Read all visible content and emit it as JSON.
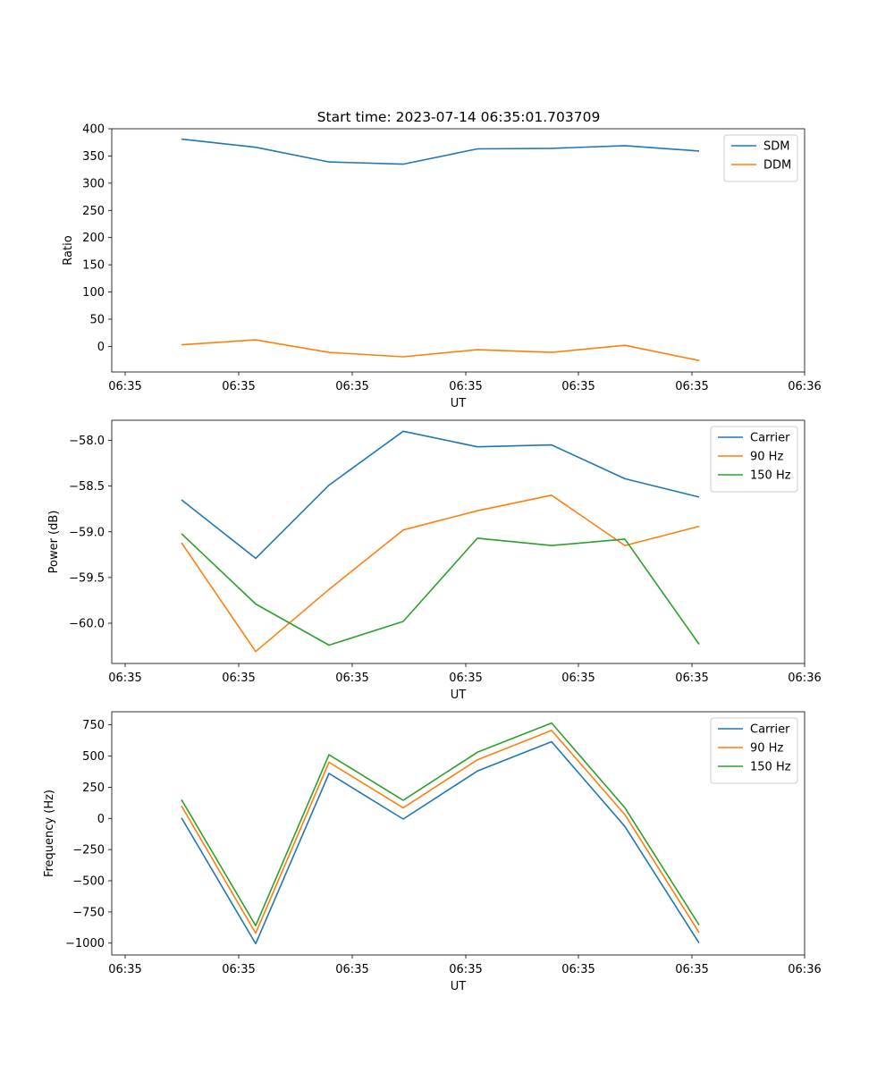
{
  "figure_title": "Start time: 2023-07-14 06:35:01.703709",
  "chart_data": [
    {
      "type": "line",
      "title": "Start time: 2023-07-14 06:35:01.703709",
      "xlabel": "UT",
      "ylabel": "Ratio",
      "xticks": [
        "06:35",
        "06:35",
        "06:35",
        "06:35",
        "06:35",
        "06:35",
        "06:36"
      ],
      "ylim": [
        -47,
        400
      ],
      "yticks": [
        0,
        50,
        100,
        150,
        200,
        250,
        300,
        350,
        400
      ],
      "ytick_labels": [
        "0",
        "50",
        "100",
        "150",
        "200",
        "250",
        "300",
        "350",
        "400"
      ],
      "legend": "top-right",
      "series": [
        {
          "name": "SDM",
          "color": "#1f77b4",
          "values": [
            381,
            366,
            339,
            335,
            363,
            364,
            369,
            359
          ]
        },
        {
          "name": "DDM",
          "color": "#ff7f0e",
          "values": [
            3,
            12,
            -11,
            -19,
            -6,
            -11,
            2,
            -26
          ]
        }
      ]
    },
    {
      "type": "line",
      "xlabel": "UT",
      "ylabel": "Power (dB)",
      "xticks": [
        "06:35",
        "06:35",
        "06:35",
        "06:35",
        "06:35",
        "06:35",
        "06:36"
      ],
      "ylim": [
        -60.44,
        -57.78
      ],
      "yticks": [
        -58.0,
        -58.5,
        -59.0,
        -59.5,
        -60.0
      ],
      "ytick_labels": [
        "−58.0",
        "−58.5",
        "−59.0",
        "−59.5",
        "−60.0"
      ],
      "legend": "top-right",
      "series": [
        {
          "name": "Carrier",
          "color": "#1f77b4",
          "values": [
            -58.65,
            -59.29,
            -58.49,
            -57.9,
            -58.07,
            -58.05,
            -58.42,
            -58.62
          ]
        },
        {
          "name": "90 Hz",
          "color": "#ff7f0e",
          "values": [
            -59.12,
            -60.31,
            -59.63,
            -58.98,
            -58.77,
            -58.6,
            -59.15,
            -58.94
          ]
        },
        {
          "name": "150 Hz",
          "color": "#2ca02c",
          "values": [
            -59.02,
            -59.79,
            -60.24,
            -59.98,
            -59.07,
            -59.15,
            -59.08,
            -60.23
          ]
        }
      ]
    },
    {
      "type": "line",
      "xlabel": "UT",
      "ylabel": "Frequency (Hz)",
      "xticks": [
        "06:35",
        "06:35",
        "06:35",
        "06:35",
        "06:35",
        "06:35",
        "06:36"
      ],
      "ylim": [
        -1095,
        855
      ],
      "yticks": [
        750,
        500,
        250,
        0,
        -250,
        -500,
        -750,
        -1000
      ],
      "ytick_labels": [
        "750",
        "500",
        "250",
        "0",
        "−250",
        "−500",
        "−750",
        "−1000"
      ],
      "legend": "top-right",
      "series": [
        {
          "name": "Carrier",
          "color": "#1f77b4",
          "values": [
            5,
            -1005,
            360,
            -5,
            380,
            615,
            -65,
            -1000
          ]
        },
        {
          "name": "90 Hz",
          "color": "#ff7f0e",
          "values": [
            100,
            -920,
            450,
            85,
            470,
            705,
            30,
            -915
          ]
        },
        {
          "name": "150 Hz",
          "color": "#2ca02c",
          "values": [
            150,
            -860,
            510,
            145,
            530,
            765,
            85,
            -855
          ]
        }
      ]
    }
  ]
}
